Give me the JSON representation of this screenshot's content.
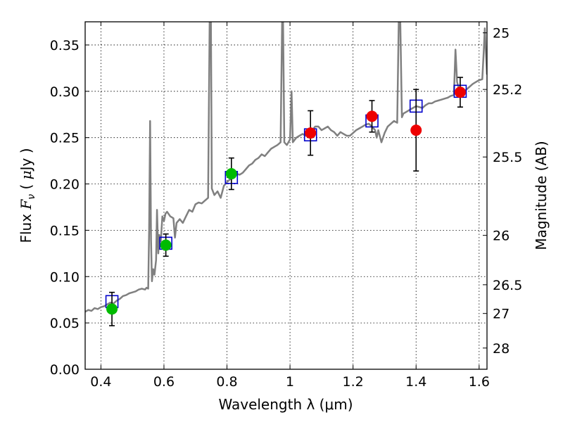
{
  "chart_data": {
    "type": "scatter",
    "xlabel": "Wavelength  λ (μm)",
    "ylabel": "Flux  F_ν  ( μJy )",
    "ylabel_parts": {
      "pre": "Flux  ",
      "italic": "F",
      "sub": "ν",
      "mid": "  ( ",
      "mu": "μ",
      "post": "Jy )"
    },
    "ylabel_right": "Magnitude (AB)",
    "xlim": [
      0.35,
      1.625
    ],
    "ylim": [
      0.0,
      0.375
    ],
    "grid": true,
    "x_ticks": [
      {
        "v": 0.4,
        "label": "0.4"
      },
      {
        "v": 0.6,
        "label": "0.6"
      },
      {
        "v": 0.8,
        "label": "0.8"
      },
      {
        "v": 1.0,
        "label": "1"
      },
      {
        "v": 1.2,
        "label": "1.2"
      },
      {
        "v": 1.4,
        "label": "1.4"
      },
      {
        "v": 1.6,
        "label": "1.6"
      }
    ],
    "y_ticks": [
      {
        "v": 0.0,
        "label": "0.00"
      },
      {
        "v": 0.05,
        "label": "0.05"
      },
      {
        "v": 0.1,
        "label": "0.10"
      },
      {
        "v": 0.15,
        "label": "0.15"
      },
      {
        "v": 0.2,
        "label": "0.20"
      },
      {
        "v": 0.25,
        "label": "0.25"
      },
      {
        "v": 0.3,
        "label": "0.30"
      },
      {
        "v": 0.35,
        "label": "0.35"
      }
    ],
    "mag_ticks": [
      {
        "flux": 0.3631,
        "label": "25"
      },
      {
        "flux": 0.302,
        "label": "25.2"
      },
      {
        "flux": 0.2291,
        "label": "25.5"
      },
      {
        "flux": 0.1445,
        "label": "26"
      },
      {
        "flux": 0.0912,
        "label": "26.5"
      },
      {
        "flux": 0.0602,
        "label": "27"
      },
      {
        "flux": 0.0229,
        "label": "28"
      }
    ],
    "colors": {
      "sed": "#808080",
      "model": "#0000cc",
      "green": "#00bb00",
      "red": "#ee0000",
      "errbar": "#000000"
    },
    "series": [
      {
        "type": "line",
        "points": [
          [
            0.35,
            0.062
          ],
          [
            0.36,
            0.064
          ],
          [
            0.37,
            0.063
          ],
          [
            0.38,
            0.066
          ],
          [
            0.39,
            0.065
          ],
          [
            0.4,
            0.067
          ],
          [
            0.41,
            0.068
          ],
          [
            0.42,
            0.07
          ],
          [
            0.43,
            0.072
          ],
          [
            0.44,
            0.071
          ],
          [
            0.45,
            0.074
          ],
          [
            0.46,
            0.076
          ],
          [
            0.47,
            0.079
          ],
          [
            0.48,
            0.08
          ],
          [
            0.49,
            0.082
          ],
          [
            0.5,
            0.083
          ],
          [
            0.51,
            0.084
          ],
          [
            0.52,
            0.086
          ],
          [
            0.53,
            0.087
          ],
          [
            0.54,
            0.086
          ],
          [
            0.545,
            0.088
          ],
          [
            0.55,
            0.087
          ],
          [
            0.553,
            0.15
          ],
          [
            0.556,
            0.268
          ],
          [
            0.559,
            0.14
          ],
          [
            0.562,
            0.095
          ],
          [
            0.566,
            0.108
          ],
          [
            0.57,
            0.102
          ],
          [
            0.575,
            0.118
          ],
          [
            0.578,
            0.172
          ],
          [
            0.582,
            0.125
          ],
          [
            0.585,
            0.145
          ],
          [
            0.59,
            0.138
          ],
          [
            0.595,
            0.165
          ],
          [
            0.6,
            0.16
          ],
          [
            0.605,
            0.168
          ],
          [
            0.61,
            0.17
          ],
          [
            0.62,
            0.165
          ],
          [
            0.63,
            0.163
          ],
          [
            0.635,
            0.142
          ],
          [
            0.64,
            0.158
          ],
          [
            0.65,
            0.162
          ],
          [
            0.66,
            0.158
          ],
          [
            0.67,
            0.165
          ],
          [
            0.68,
            0.172
          ],
          [
            0.69,
            0.17
          ],
          [
            0.7,
            0.178
          ],
          [
            0.71,
            0.18
          ],
          [
            0.72,
            0.179
          ],
          [
            0.73,
            0.182
          ],
          [
            0.74,
            0.185
          ],
          [
            0.745,
            0.375
          ],
          [
            0.749,
            0.375
          ],
          [
            0.752,
            0.195
          ],
          [
            0.76,
            0.188
          ],
          [
            0.77,
            0.192
          ],
          [
            0.78,
            0.185
          ],
          [
            0.79,
            0.198
          ],
          [
            0.8,
            0.202
          ],
          [
            0.81,
            0.205
          ],
          [
            0.82,
            0.208
          ],
          [
            0.83,
            0.211
          ],
          [
            0.84,
            0.21
          ],
          [
            0.85,
            0.212
          ],
          [
            0.86,
            0.216
          ],
          [
            0.87,
            0.22
          ],
          [
            0.88,
            0.222
          ],
          [
            0.89,
            0.226
          ],
          [
            0.9,
            0.228
          ],
          [
            0.91,
            0.232
          ],
          [
            0.92,
            0.23
          ],
          [
            0.93,
            0.234
          ],
          [
            0.94,
            0.238
          ],
          [
            0.95,
            0.24
          ],
          [
            0.96,
            0.242
          ],
          [
            0.97,
            0.245
          ],
          [
            0.975,
            0.375
          ],
          [
            0.978,
            0.375
          ],
          [
            0.982,
            0.245
          ],
          [
            0.99,
            0.242
          ],
          [
            1.0,
            0.248
          ],
          [
            1.005,
            0.3
          ],
          [
            1.009,
            0.245
          ],
          [
            1.02,
            0.25
          ],
          [
            1.03,
            0.252
          ],
          [
            1.04,
            0.254
          ],
          [
            1.05,
            0.252
          ],
          [
            1.06,
            0.256
          ],
          [
            1.07,
            0.258
          ],
          [
            1.08,
            0.262
          ],
          [
            1.09,
            0.262
          ],
          [
            1.1,
            0.258
          ],
          [
            1.11,
            0.26
          ],
          [
            1.12,
            0.262
          ],
          [
            1.13,
            0.258
          ],
          [
            1.14,
            0.256
          ],
          [
            1.15,
            0.252
          ],
          [
            1.16,
            0.256
          ],
          [
            1.17,
            0.254
          ],
          [
            1.18,
            0.252
          ],
          [
            1.19,
            0.252
          ],
          [
            1.2,
            0.255
          ],
          [
            1.21,
            0.258
          ],
          [
            1.22,
            0.26
          ],
          [
            1.23,
            0.262
          ],
          [
            1.24,
            0.264
          ],
          [
            1.25,
            0.265
          ],
          [
            1.26,
            0.262
          ],
          [
            1.27,
            0.258
          ],
          [
            1.275,
            0.25
          ],
          [
            1.28,
            0.258
          ],
          [
            1.29,
            0.245
          ],
          [
            1.3,
            0.255
          ],
          [
            1.31,
            0.262
          ],
          [
            1.32,
            0.265
          ],
          [
            1.33,
            0.268
          ],
          [
            1.34,
            0.266
          ],
          [
            1.345,
            0.375
          ],
          [
            1.35,
            0.375
          ],
          [
            1.355,
            0.272
          ],
          [
            1.36,
            0.276
          ],
          [
            1.37,
            0.278
          ],
          [
            1.38,
            0.28
          ],
          [
            1.39,
            0.282
          ],
          [
            1.4,
            0.284
          ],
          [
            1.41,
            0.283
          ],
          [
            1.42,
            0.282
          ],
          [
            1.43,
            0.285
          ],
          [
            1.44,
            0.287
          ],
          [
            1.45,
            0.287
          ],
          [
            1.46,
            0.289
          ],
          [
            1.47,
            0.29
          ],
          [
            1.48,
            0.291
          ],
          [
            1.49,
            0.292
          ],
          [
            1.5,
            0.293
          ],
          [
            1.51,
            0.295
          ],
          [
            1.52,
            0.296
          ],
          [
            1.525,
            0.345
          ],
          [
            1.53,
            0.31
          ],
          [
            1.54,
            0.298
          ],
          [
            1.55,
            0.3
          ],
          [
            1.56,
            0.302
          ],
          [
            1.57,
            0.305
          ],
          [
            1.58,
            0.308
          ],
          [
            1.59,
            0.31
          ],
          [
            1.6,
            0.312
          ],
          [
            1.61,
            0.313
          ],
          [
            1.615,
            0.345
          ],
          [
            1.618,
            0.368
          ],
          [
            1.62,
            0.352
          ],
          [
            1.625,
            0.318
          ]
        ]
      },
      {
        "type": "scatter",
        "marker": "square",
        "points": [
          {
            "x": 0.435,
            "y": 0.073
          },
          {
            "x": 0.606,
            "y": 0.136
          },
          {
            "x": 0.814,
            "y": 0.207
          },
          {
            "x": 1.065,
            "y": 0.253
          },
          {
            "x": 1.26,
            "y": 0.268
          },
          {
            "x": 1.4,
            "y": 0.284
          },
          {
            "x": 1.54,
            "y": 0.3
          }
        ]
      },
      {
        "type": "scatter",
        "marker": "circle",
        "points": [
          {
            "x": 0.435,
            "y": 0.065,
            "err": 0.018,
            "color": "green"
          },
          {
            "x": 0.606,
            "y": 0.134,
            "err": 0.012,
            "color": "green"
          },
          {
            "x": 0.814,
            "y": 0.211,
            "err": 0.017,
            "color": "green"
          },
          {
            "x": 1.065,
            "y": 0.255,
            "err": 0.024,
            "color": "red"
          },
          {
            "x": 1.26,
            "y": 0.273,
            "err": 0.017,
            "color": "red"
          },
          {
            "x": 1.4,
            "y": 0.258,
            "err": 0.044,
            "color": "red"
          },
          {
            "x": 1.54,
            "y": 0.299,
            "err": 0.016,
            "color": "red"
          }
        ]
      }
    ]
  }
}
